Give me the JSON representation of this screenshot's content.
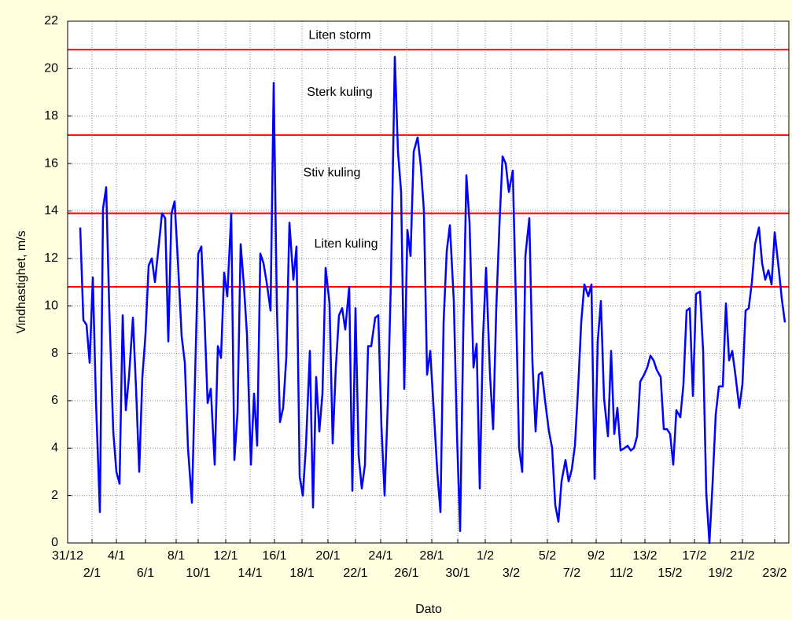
{
  "chart_data": {
    "type": "line",
    "xlabel": "Dato",
    "ylabel": "Vindhastighet, m/s",
    "xlim": [
      86,
      1003
    ],
    "ylim": [
      0,
      22
    ],
    "yticks": [
      0,
      2,
      4,
      6,
      8,
      10,
      12,
      14,
      16,
      18,
      20,
      22
    ],
    "xticks": [
      {
        "value": 86,
        "label": "31/12"
      },
      {
        "value": 117,
        "label": "2/1"
      },
      {
        "value": 148,
        "label": "4/1"
      },
      {
        "value": 185,
        "label": "6/1"
      },
      {
        "value": 224,
        "label": "8/1"
      },
      {
        "value": 252,
        "label": "10/1"
      },
      {
        "value": 287,
        "label": "12/1"
      },
      {
        "value": 318,
        "label": "14/1"
      },
      {
        "value": 349,
        "label": "16/1"
      },
      {
        "value": 384,
        "label": "18/1"
      },
      {
        "value": 417,
        "label": "20/1"
      },
      {
        "value": 452,
        "label": "22/1"
      },
      {
        "value": 484,
        "label": "24/1"
      },
      {
        "value": 517,
        "label": "26/1"
      },
      {
        "value": 549,
        "label": "28/1"
      },
      {
        "value": 582,
        "label": "30/1"
      },
      {
        "value": 617,
        "label": "1/2"
      },
      {
        "value": 650,
        "label": "3/2"
      },
      {
        "value": 696,
        "label": "5/2"
      },
      {
        "value": 727,
        "label": "7/2"
      },
      {
        "value": 758,
        "label": "9/2"
      },
      {
        "value": 790,
        "label": "11/2"
      },
      {
        "value": 820,
        "label": "13/2"
      },
      {
        "value": 852,
        "label": "15/2"
      },
      {
        "value": 883,
        "label": "17/2"
      },
      {
        "value": 916,
        "label": "19/2"
      },
      {
        "value": 944,
        "label": "21/2"
      },
      {
        "value": 985,
        "label": "23/2"
      }
    ],
    "grid": true,
    "reference_lines": [
      {
        "value": 20.8,
        "color": "#ff0000"
      },
      {
        "value": 17.2,
        "color": "#ff0000"
      },
      {
        "value": 13.9,
        "color": "#ff0000"
      },
      {
        "value": 10.8,
        "color": "#ff0000"
      }
    ],
    "annotations": [
      {
        "text": "Liten storm",
        "x": 432,
        "y": 21.4
      },
      {
        "text": "Sterk kuling",
        "x": 432,
        "y": 19.0
      },
      {
        "text": "Stiv kuling",
        "x": 422,
        "y": 15.6
      },
      {
        "text": "Liten kuling",
        "x": 440,
        "y": 12.6
      }
    ],
    "series": [
      {
        "name": "Vindhastighet",
        "color": "#0000ff",
        "x": [
          102,
          106,
          110,
          114,
          118,
          122,
          127,
          131,
          135,
          139,
          144,
          148,
          152,
          156,
          160,
          164,
          169,
          173,
          177,
          181,
          185,
          189,
          193,
          197,
          202,
          206,
          210,
          214,
          218,
          222,
          226,
          231,
          235,
          239,
          244,
          248,
          252,
          256,
          260,
          264,
          268,
          273,
          277,
          281,
          285,
          289,
          294,
          298,
          302,
          306,
          310,
          314,
          319,
          323,
          327,
          331,
          335,
          339,
          344,
          348,
          352,
          356,
          360,
          364,
          368,
          373,
          377,
          381,
          385,
          389,
          394,
          398,
          402,
          406,
          410,
          414,
          419,
          423,
          427,
          431,
          435,
          439,
          444,
          448,
          452,
          456,
          460,
          464,
          468,
          472,
          477,
          481,
          485,
          489,
          493,
          497,
          502,
          506,
          510,
          514,
          518,
          522,
          526,
          531,
          535,
          539,
          543,
          547,
          552,
          556,
          560,
          564,
          568,
          572,
          577,
          581,
          585,
          589,
          593,
          597,
          602,
          606,
          610,
          614,
          618,
          623,
          627,
          631,
          635,
          639,
          643,
          647,
          652,
          656,
          660,
          664,
          668,
          673,
          677,
          681,
          685,
          689,
          693,
          698,
          702,
          706,
          710,
          714,
          719,
          723,
          727,
          731,
          735,
          739,
          743,
          748,
          752,
          756,
          760,
          764,
          768,
          773,
          777,
          781,
          785,
          789,
          794,
          798,
          802,
          806,
          810,
          814,
          819,
          823,
          827,
          831,
          835,
          840,
          844,
          848,
          852,
          856,
          860,
          865,
          869,
          873,
          877,
          881,
          885,
          890,
          894,
          898,
          902,
          906,
          910,
          914,
          919,
          923,
          927,
          931,
          935,
          940,
          944,
          948,
          952,
          956,
          960,
          965,
          969,
          973,
          977,
          981,
          985,
          990,
          994,
          998
        ],
        "values": [
          13.3,
          9.4,
          9.2,
          7.6,
          11.2,
          6,
          1.3,
          14.1,
          15,
          9.8,
          4.7,
          3,
          2.5,
          9.6,
          5.6,
          7,
          9.5,
          6.5,
          3,
          7,
          8.8,
          11.7,
          12,
          11,
          12.6,
          13.9,
          13.7,
          8.5,
          13.9,
          14.4,
          12,
          8.7,
          7.6,
          4,
          1.7,
          7,
          12.2,
          12.5,
          9.5,
          5.9,
          6.5,
          3.3,
          8.3,
          7.8,
          11.4,
          10.4,
          13.9,
          3.5,
          5.5,
          12.6,
          10.9,
          8.8,
          3.3,
          6.3,
          4.1,
          12.2,
          11.8,
          11,
          9.8,
          19.4,
          10,
          5.1,
          5.7,
          7.8,
          13.5,
          11.1,
          12.5,
          2.8,
          2,
          4.1,
          8.1,
          1.5,
          7,
          4.7,
          6.3,
          11.6,
          10.1,
          4.2,
          7.4,
          9.6,
          9.9,
          9,
          10.8,
          2.2,
          9.9,
          3.7,
          2.3,
          3.3,
          8.3,
          8.3,
          9.5,
          9.6,
          4.9,
          2,
          5.8,
          11,
          20.5,
          16.5,
          14.8,
          6.5,
          13.2,
          12.1,
          16.5,
          17.1,
          15.9,
          14,
          7.1,
          8.1,
          5.3,
          3,
          1.3,
          9.3,
          12.3,
          13.4,
          10.2,
          4.6,
          0.5,
          8.8,
          15.5,
          13.5,
          7.4,
          8.4,
          2.3,
          8.6,
          11.6,
          7.1,
          4.8,
          9.9,
          13.4,
          16.3,
          16,
          14.8,
          15.7,
          10.1,
          4,
          3,
          12.1,
          13.7,
          7.6,
          4.7,
          7.1,
          7.2,
          6,
          4.7,
          4,
          1.6,
          0.9,
          2.6,
          3.5,
          2.6,
          3.1,
          4.1,
          6.5,
          9.3,
          10.9,
          10.4,
          10.9,
          2.7,
          8.5,
          10.2,
          6.1,
          4.5,
          8.1,
          4.6,
          5.7,
          3.9,
          4,
          4.1,
          3.9,
          4,
          4.5,
          6.8,
          7.1,
          7.4,
          7.9,
          7.7,
          7.3,
          7,
          4.8,
          4.8,
          4.6,
          3.3,
          5.6,
          5.3,
          6.7,
          9.8,
          9.9,
          6.2,
          10.5,
          10.6,
          8.1,
          2.1,
          0,
          2.5,
          5.4,
          6.6,
          6.6,
          10.1,
          7.7,
          8.1,
          7.1,
          5.7,
          6.7,
          9.8,
          9.9,
          11,
          12.6,
          13.3,
          11.8,
          11.1,
          11.5,
          10.9,
          13.1,
          11.6,
          10.3,
          9.3
        ]
      }
    ]
  }
}
